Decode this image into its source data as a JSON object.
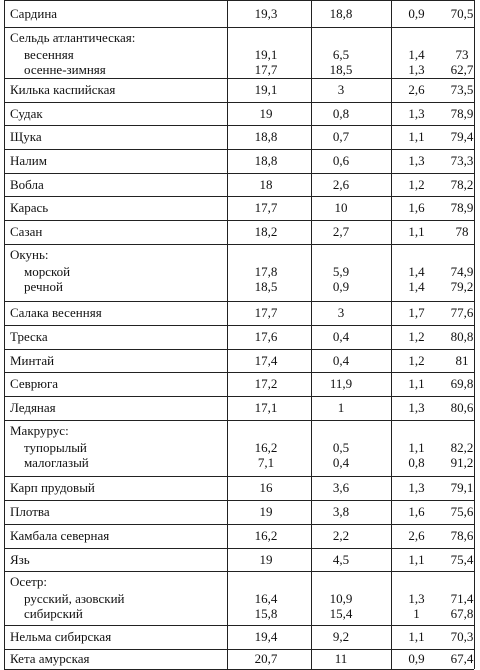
{
  "rows": [
    {
      "name": "Сардина",
      "v1": "19,3",
      "v2": "18,8",
      "v3": "0,9",
      "v4": "70,5"
    },
    {
      "name": "Сельдь атлантическая:",
      "subs": [
        {
          "name": "весенняя",
          "v1": "19,1",
          "v2": "6,5",
          "v3": "1,4",
          "v4": "73"
        },
        {
          "name": "осенне-зимняя",
          "v1": "17,7",
          "v2": "18,5",
          "v3": "1,3",
          "v4": "62,7"
        }
      ]
    },
    {
      "name": "Килька каспийская",
      "v1": "19,1",
      "v2": "3",
      "v3": "2,6",
      "v4": "73,5"
    },
    {
      "name": "Судак",
      "v1": "19",
      "v2": "0,8",
      "v3": "1,3",
      "v4": "78,9"
    },
    {
      "name": "Щука",
      "v1": "18,8",
      "v2": "0,7",
      "v3": "1,1",
      "v4": "79,4"
    },
    {
      "name": "Налим",
      "v1": "18,8",
      "v2": "0,6",
      "v3": "1,3",
      "v4": "73,3"
    },
    {
      "name": "Вобла",
      "v1": "18",
      "v2": "2,6",
      "v3": "1,2",
      "v4": "78,2"
    },
    {
      "name": "Карась",
      "v1": "17,7",
      "v2": "10",
      "v3": "1,6",
      "v4": "78,9"
    },
    {
      "name": "Сазан",
      "v1": "18,2",
      "v2": "2,7",
      "v3": "1,1",
      "v4": "78"
    },
    {
      "name": "Окунь:",
      "subs": [
        {
          "name": "морской",
          "v1": "17,8",
          "v2": "5,9",
          "v3": "1,4",
          "v4": "74,9"
        },
        {
          "name": "речной",
          "v1": "18,5",
          "v2": "0,9",
          "v3": "1,4",
          "v4": "79,2"
        }
      ]
    },
    {
      "name": "Салака весенняя",
      "v1": "17,7",
      "v2": "3",
      "v3": "1,7",
      "v4": "77,6"
    },
    {
      "name": "Треска",
      "v1": "17,6",
      "v2": "0,4",
      "v3": "1,2",
      "v4": "80,8"
    },
    {
      "name": "Минтай",
      "v1": "17,4",
      "v2": "0,4",
      "v3": "1,2",
      "v4": "81"
    },
    {
      "name": "Севрюга",
      "v1": "17,2",
      "v2": "11,9",
      "v3": "1,1",
      "v4": "69,8"
    },
    {
      "name": "Ледяная",
      "v1": "17,1",
      "v2": "1",
      "v3": "1,3",
      "v4": "80,6"
    },
    {
      "name": "Макрурус:",
      "subs": [
        {
          "name": "тупорылый",
          "v1": "16,2",
          "v2": "0,5",
          "v3": "1,1",
          "v4": "82,2"
        },
        {
          "name": "малоглазый",
          "v1": "7,1",
          "v2": "0,4",
          "v3": "0,8",
          "v4": "91,2"
        }
      ]
    },
    {
      "name": "Карп прудовый",
      "v1": "16",
      "v2": "3,6",
      "v3": "1,3",
      "v4": "79,1"
    },
    {
      "name": "Плотва",
      "v1": "19",
      "v2": "3,8",
      "v3": "1,6",
      "v4": "75,6"
    },
    {
      "name": "Камбала северная",
      "v1": "16,2",
      "v2": "2,2",
      "v3": "2,6",
      "v4": "78,6"
    },
    {
      "name": "Язь",
      "v1": "19",
      "v2": "4,5",
      "v3": "1,1",
      "v4": "75,4"
    },
    {
      "name": "Осетр:",
      "subs": [
        {
          "name": "русский, азовский",
          "v1": "16,4",
          "v2": "10,9",
          "v3": "1,3",
          "v4": "71,4"
        },
        {
          "name": "сибирский",
          "v1": "15,8",
          "v2": "15,4",
          "v3": "1",
          "v4": "67,8"
        }
      ]
    },
    {
      "name": "Нельма сибирская",
      "v1": "19,4",
      "v2": "9,2",
      "v3": "1,1",
      "v4": "70,3"
    },
    {
      "name": "Кета амурская",
      "v1": "20,7",
      "v2": "11",
      "v3": "0,9",
      "v4": "67,4"
    }
  ]
}
